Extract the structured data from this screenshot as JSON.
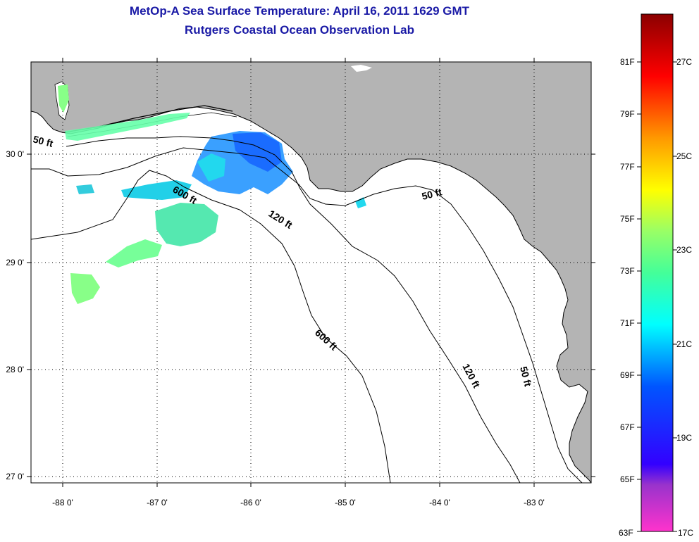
{
  "title_line1": "MetOp-A Sea Surface Temperature:  April 16, 2011 1629 GMT",
  "title_line2": "Rutgers Coastal Ocean Observation Lab",
  "map": {
    "lat_ticks": [
      "30 0'",
      "29 0'",
      "28 0'",
      "27 0'"
    ],
    "lon_ticks": [
      "-88 0'",
      "-87 0'",
      "-86 0'",
      "-85 0'",
      "-84 0'",
      "-83 0'"
    ],
    "contour_labels": {
      "c50_west": "50 ft",
      "c600_north": "600 ft",
      "c120_north": "120 ft",
      "c50_east": "50 ft",
      "c600_south": "600 ft",
      "c120_south": "120 ft",
      "c50_south": "50 ft"
    },
    "colors": {
      "land": "#b4b4b4",
      "ocean": "#ffffff",
      "title": "#1a1aa6"
    }
  },
  "colorbar": {
    "fahrenheit": [
      "81F",
      "79F",
      "77F",
      "75F",
      "73F",
      "71F",
      "69F",
      "67F",
      "65F",
      "63F"
    ],
    "celsius": [
      "27C",
      "25C",
      "23C",
      "21C",
      "19C",
      "17C"
    ]
  }
}
